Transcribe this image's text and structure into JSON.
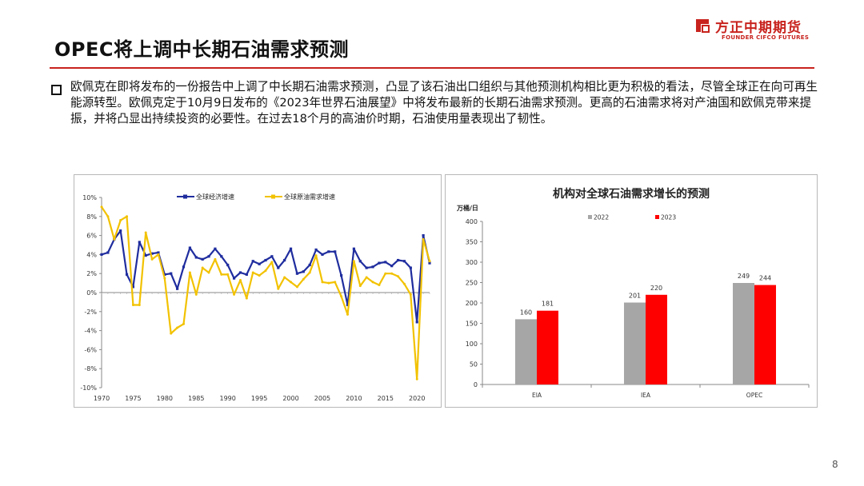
{
  "slide": {
    "title": "OPEC将上调中长期石油需求预测",
    "body": "欧佩克在即将发布的一份报告中上调了中长期石油需求预测，凸显了该石油出口组织与其他预测机构相比更为积极的看法，尽管全球正在向可再生能源转型。欧佩克定于10月9日发布的《2023年世界石油展望》中将发布最新的长期石油需求预测。更高的石油需求将对产油国和欧佩克带来提振，并将凸显出持续投资的必要性。在过去18个月的高油价时期，石油使用量表现出了韧性。",
    "page_number": "8"
  },
  "logo": {
    "name_cn": "方正中期期货",
    "name_en": "FOUNDER CIFCO FUTURES"
  },
  "colors": {
    "accent": "#c8231e",
    "series_gdp": "#1f2d9e",
    "series_oil": "#f2c200",
    "bar_2022": "#a6a6a6",
    "bar_2023": "#ff0000"
  },
  "chart_data": [
    {
      "type": "line",
      "title": "",
      "xlabel": "",
      "ylabel": "",
      "x": [
        1970,
        1971,
        1972,
        1973,
        1974,
        1975,
        1976,
        1977,
        1978,
        1979,
        1980,
        1981,
        1982,
        1983,
        1984,
        1985,
        1986,
        1987,
        1988,
        1989,
        1990,
        1991,
        1992,
        1993,
        1994,
        1995,
        1996,
        1997,
        1998,
        1999,
        2000,
        2001,
        2002,
        2003,
        2004,
        2005,
        2006,
        2007,
        2008,
        2009,
        2010,
        2011,
        2012,
        2013,
        2014,
        2015,
        2016,
        2017,
        2018,
        2019,
        2020,
        2021,
        2022
      ],
      "series": [
        {
          "name": "全球经济增速",
          "values": [
            4.0,
            4.2,
            5.6,
            6.5,
            1.9,
            0.6,
            5.3,
            3.9,
            4.1,
            4.2,
            1.9,
            2.0,
            0.4,
            2.7,
            4.7,
            3.7,
            3.5,
            3.8,
            4.6,
            3.8,
            2.9,
            1.5,
            2.1,
            1.9,
            3.3,
            3.0,
            3.4,
            3.8,
            2.6,
            3.4,
            4.6,
            2.0,
            2.2,
            2.9,
            4.5,
            4.0,
            4.3,
            4.3,
            1.8,
            -1.3,
            4.6,
            3.3,
            2.6,
            2.7,
            3.1,
            3.2,
            2.8,
            3.4,
            3.3,
            2.6,
            -3.1,
            6.0,
            3.1
          ]
        },
        {
          "name": "全球原油需求增速",
          "values": [
            9.0,
            8.0,
            5.6,
            7.6,
            8.0,
            -1.3,
            -1.3,
            6.3,
            3.5,
            4.0,
            1.5,
            -4.3,
            -3.7,
            -3.3,
            2.1,
            -0.2,
            2.6,
            2.1,
            3.5,
            1.9,
            1.9,
            -0.2,
            1.3,
            -0.6,
            2.1,
            1.8,
            2.3,
            3.2,
            0.4,
            1.6,
            1.1,
            0.6,
            1.4,
            2.1,
            3.9,
            1.1,
            1.0,
            1.1,
            -0.4,
            -2.3,
            3.3,
            0.7,
            1.6,
            1.1,
            0.8,
            2.0,
            2.0,
            1.7,
            0.9,
            -0.2,
            -9.1,
            5.6,
            3.3
          ]
        }
      ],
      "ylim": [
        -10,
        10
      ],
      "yticks": [
        "10%",
        "8%",
        "6%",
        "4%",
        "2%",
        "0%",
        "-2%",
        "-4%",
        "-6%",
        "-8%",
        "-10%"
      ],
      "xticks": [
        "1970",
        "1975",
        "1980",
        "1985",
        "1990",
        "1995",
        "2000",
        "2005",
        "2010",
        "2015",
        "2020"
      ],
      "grid": false,
      "legend": "top"
    },
    {
      "type": "bar",
      "title": "机构对全球石油需求增长的预测",
      "ylabel": "万桶/日",
      "categories": [
        "EIA",
        "IEA",
        "OPEC"
      ],
      "series": [
        {
          "name": "2022",
          "values": [
            160,
            201,
            249
          ]
        },
        {
          "name": "2023",
          "values": [
            181,
            220,
            244
          ]
        }
      ],
      "ylim": [
        0,
        400
      ],
      "yticks": [
        "400",
        "350",
        "300",
        "250",
        "200",
        "150",
        "100",
        "50",
        "0"
      ],
      "grid": false,
      "legend": "top"
    }
  ]
}
